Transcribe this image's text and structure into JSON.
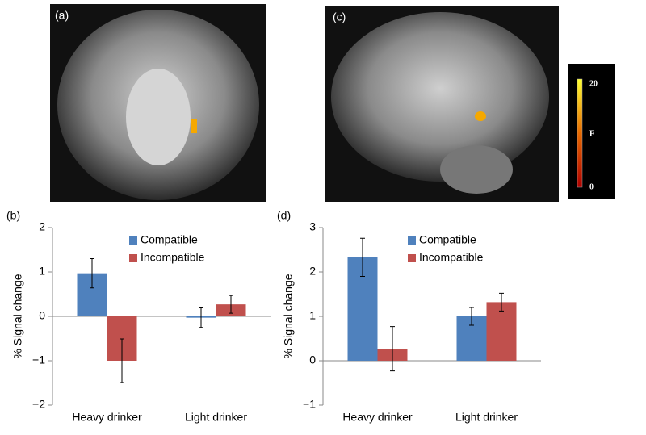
{
  "figure": {
    "panel_labels": [
      "(a)",
      "(c)"
    ],
    "colorbar": {
      "label": "F",
      "lim": [
        0,
        20
      ],
      "ticks": [
        0,
        20
      ]
    }
  },
  "chart_data": [
    {
      "type": "bar",
      "title": "(b)",
      "y_label": "% Signal change",
      "categories": [
        "Heavy drinker",
        "Light drinker"
      ],
      "series": [
        {
          "name": "Compatible",
          "color": "#4f81bd",
          "values": [
            0.97,
            -0.03
          ],
          "errors": [
            0.33,
            0.22
          ]
        },
        {
          "name": "Incompatible",
          "color": "#c0504d",
          "values": [
            -1.0,
            0.27
          ],
          "errors": [
            0.49,
            0.2
          ]
        }
      ],
      "ylim": [
        -2,
        2
      ],
      "yticks": [
        {
          "value": -2,
          "label": "−2"
        },
        {
          "value": -1,
          "label": "−1"
        },
        0,
        1,
        2
      ]
    },
    {
      "type": "bar",
      "title": "(d)",
      "y_label": "% Signal change",
      "categories": [
        "Heavy drinker",
        "Light drinker"
      ],
      "series": [
        {
          "name": "Compatible",
          "color": "#4f81bd",
          "values": [
            2.33,
            1.0
          ],
          "errors": [
            0.43,
            0.2
          ]
        },
        {
          "name": "Incompatible",
          "color": "#c0504d",
          "values": [
            0.27,
            1.32
          ],
          "errors": [
            0.5,
            0.2
          ]
        }
      ],
      "ylim": [
        -1,
        3
      ],
      "yticks": [
        {
          "value": -1,
          "label": "−1"
        },
        0,
        1,
        2,
        3
      ]
    }
  ]
}
